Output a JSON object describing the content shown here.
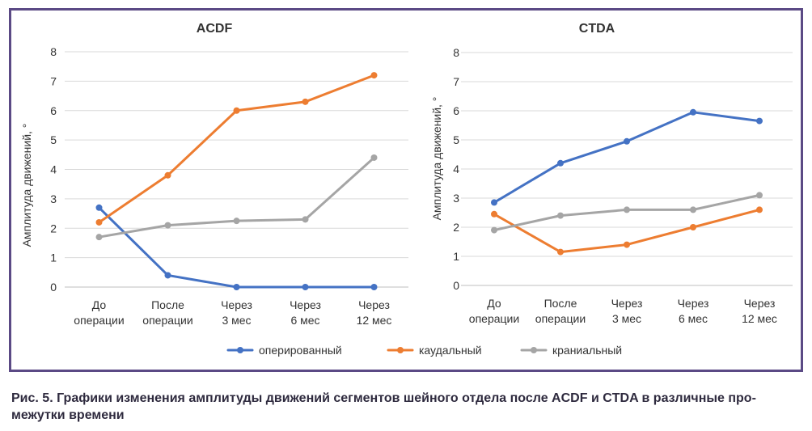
{
  "charts": [
    {
      "title": "ACDF",
      "ylabel": "Амплитуда движений, °",
      "yticks": [
        "0",
        "1",
        "2",
        "3",
        "4",
        "5",
        "6",
        "7",
        "8"
      ],
      "ylim": [
        0,
        8
      ],
      "categories": [
        [
          "До",
          "операции"
        ],
        [
          "После",
          "операции"
        ],
        [
          "Через",
          "3 мес"
        ],
        [
          "Через",
          "6 мес"
        ],
        [
          "Через",
          "12 мес"
        ]
      ]
    },
    {
      "title": "CTDA",
      "ylabel": "Амплитуда движений, °",
      "yticks": [
        "0",
        "1",
        "2",
        "3",
        "4",
        "5",
        "6",
        "7",
        "8"
      ],
      "ylim": [
        0,
        8
      ],
      "categories": [
        [
          "До",
          "операции"
        ],
        [
          "После",
          "операции"
        ],
        [
          "Через",
          "3 мес"
        ],
        [
          "Через",
          "6 мес"
        ],
        [
          "Через",
          "12 мес"
        ]
      ]
    }
  ],
  "legend": [
    {
      "name": "оперированный",
      "color": "#4472c4"
    },
    {
      "name": "каудальный",
      "color": "#ed7d31"
    },
    {
      "name": "краниальный",
      "color": "#a5a5a5"
    }
  ],
  "chart_data": [
    {
      "type": "line",
      "title": "ACDF",
      "ylabel": "Амплитуда движений, °",
      "ylim": [
        0,
        8
      ],
      "categories": [
        "До операции",
        "После операции",
        "Через 3 мес",
        "Через 6 мес",
        "Через 12 мес"
      ],
      "grid": true,
      "legend_position": "bottom",
      "series": [
        {
          "name": "оперированный",
          "values": [
            2.7,
            0.4,
            0,
            0,
            0
          ]
        },
        {
          "name": "каудальный",
          "values": [
            2.2,
            3.8,
            6.0,
            6.3,
            7.2
          ]
        },
        {
          "name": "краниальный",
          "values": [
            1.7,
            2.1,
            2.25,
            2.3,
            4.4
          ]
        }
      ]
    },
    {
      "type": "line",
      "title": "CTDA",
      "ylabel": "Амплитуда движений, °",
      "ylim": [
        0,
        8
      ],
      "categories": [
        "До операции",
        "После операции",
        "Через 3 мес",
        "Через 6 мес",
        "Через 12 мес"
      ],
      "grid": true,
      "legend_position": "bottom",
      "series": [
        {
          "name": "оперированный",
          "values": [
            2.85,
            4.2,
            4.95,
            5.95,
            5.65
          ]
        },
        {
          "name": "каудальный",
          "values": [
            2.45,
            1.15,
            1.4,
            2.0,
            2.6
          ]
        },
        {
          "name": "краниальный",
          "values": [
            1.9,
            2.4,
            2.6,
            2.6,
            3.1
          ]
        }
      ]
    }
  ],
  "caption": {
    "line1": "Рис. 5. Графики изменения амплитуды движений сегментов шейного отдела после ACDF и CTDA в различные про-",
    "line2": "межутки времени"
  }
}
